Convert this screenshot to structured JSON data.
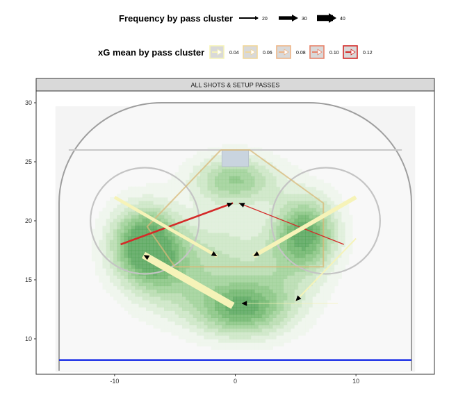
{
  "chart_data": {
    "type": "line",
    "strip_label": "ALL SHOTS & SETUP PASSES",
    "legend_frequency": {
      "title": "Frequency by pass cluster",
      "entries": [
        {
          "label": "20",
          "value": 20
        },
        {
          "label": "30",
          "value": 30
        },
        {
          "label": "40",
          "value": 40
        }
      ]
    },
    "legend_xg": {
      "title": "xG mean by pass cluster",
      "entries": [
        {
          "label": "0.04",
          "value": 0.04,
          "color": "#f6f3b8"
        },
        {
          "label": "0.06",
          "value": 0.06,
          "color": "#f1d79a"
        },
        {
          "label": "0.08",
          "value": 0.08,
          "color": "#eeb587"
        },
        {
          "label": "0.10",
          "value": 0.1,
          "color": "#e8836b"
        },
        {
          "label": "0.12",
          "value": 0.12,
          "color": "#d42a28"
        }
      ]
    },
    "xlim": [
      -16.5,
      16.5
    ],
    "ylim": [
      7,
      31
    ],
    "x_ticks": [
      {
        "value": -10,
        "label": "-10"
      },
      {
        "value": 0,
        "label": "0"
      },
      {
        "value": 10,
        "label": "10"
      }
    ],
    "y_ticks": [
      {
        "value": 10,
        "label": "10"
      },
      {
        "value": 15,
        "label": "15"
      },
      {
        "value": 20,
        "label": "20"
      },
      {
        "value": 25,
        "label": "25"
      },
      {
        "value": 30,
        "label": "30"
      }
    ],
    "density_peaks": [
      {
        "x": -7.5,
        "y": 18.2,
        "weight": 1.0,
        "sx": 2.0,
        "sy": 2.2
      },
      {
        "x": -5.5,
        "y": 15.5,
        "weight": 0.45,
        "sx": 2.6,
        "sy": 2.4
      },
      {
        "x": 5.8,
        "y": 19.0,
        "weight": 0.9,
        "sx": 1.9,
        "sy": 2.2
      },
      {
        "x": 0.3,
        "y": 12.5,
        "weight": 0.8,
        "sx": 2.8,
        "sy": 1.7
      },
      {
        "x": 0.0,
        "y": 23.5,
        "weight": 0.65,
        "sx": 2.5,
        "sy": 1.5
      },
      {
        "x": -1.0,
        "y": 17.5,
        "weight": 0.3,
        "sx": 2.5,
        "sy": 2.5
      },
      {
        "x": 3.5,
        "y": 15.0,
        "weight": 0.3,
        "sx": 2.5,
        "sy": 2.5
      }
    ],
    "passes": [
      {
        "x_start": -9.5,
        "y_start": 18.0,
        "x_end": -0.2,
        "y_end": 21.5,
        "frequency": 22,
        "xg": 0.12
      },
      {
        "x_start": 9.0,
        "y_start": 18.0,
        "x_end": 0.3,
        "y_end": 21.5,
        "frequency": 18,
        "xg": 0.12
      },
      {
        "x_start": -10.0,
        "y_start": 22.0,
        "x_end": -1.5,
        "y_end": 17.0,
        "frequency": 28,
        "xg": 0.04
      },
      {
        "x_start": 10.0,
        "y_start": 22.0,
        "x_end": 1.5,
        "y_end": 17.0,
        "frequency": 32,
        "xg": 0.04
      },
      {
        "x_start": -0.2,
        "y_start": 12.8,
        "x_end": -7.6,
        "y_end": 17.1,
        "frequency": 45,
        "xg": 0.04
      },
      {
        "x_start": 10.0,
        "y_start": 18.5,
        "x_end": 5.0,
        "y_end": 13.2,
        "frequency": 20,
        "xg": 0.04
      },
      {
        "x_start": 8.5,
        "y_start": 13.0,
        "x_end": 0.5,
        "y_end": 13.0,
        "frequency": 16,
        "xg": 0.04
      }
    ]
  }
}
